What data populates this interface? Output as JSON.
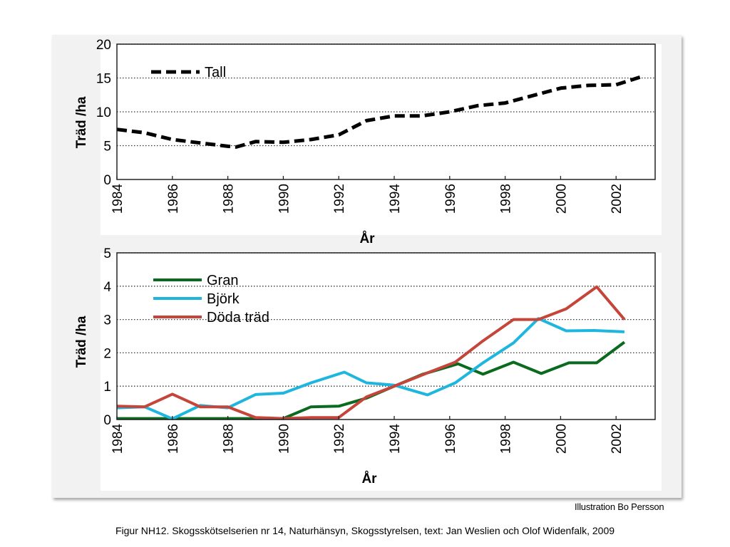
{
  "chart_data": [
    {
      "type": "line",
      "ylabel": "Träd /ha",
      "xlabel": "År",
      "ylim": [
        0,
        20
      ],
      "yticks": [
        0,
        5,
        10,
        15,
        20
      ],
      "xlim": [
        1984,
        2003
      ],
      "xticks": [
        "1984",
        "1986",
        "1988",
        "1990",
        "1992",
        "1994",
        "1996",
        "1998",
        "2000",
        "2002"
      ],
      "grid": "horizontal dotted",
      "legend_position": "top-left",
      "series": [
        {
          "name": "Tall",
          "color": "#000000",
          "dash": "dashed",
          "x": [
            1984,
            1985,
            1986,
            1987,
            1988,
            1988.3,
            1989,
            1990,
            1991,
            1992,
            1993,
            1994,
            1995,
            1996,
            1997,
            1998,
            1999,
            2000,
            2001,
            2002,
            2003
          ],
          "y": [
            7.4,
            6.9,
            5.9,
            5.4,
            4.9,
            4.8,
            5.6,
            5.5,
            5.9,
            6.6,
            8.7,
            9.4,
            9.4,
            10,
            10.9,
            11.3,
            12.4,
            13.5,
            13.9,
            14,
            15.3
          ]
        }
      ]
    },
    {
      "type": "line",
      "ylabel": "Träd /ha",
      "xlabel": "År",
      "ylim": [
        0,
        5
      ],
      "yticks": [
        0,
        1,
        2,
        3,
        4,
        5
      ],
      "xlim": [
        1984,
        2003
      ],
      "xticks": [
        "1984",
        "1986",
        "1988",
        "1990",
        "1992",
        "1994",
        "1996",
        "1998",
        "2000",
        "2002"
      ],
      "grid": "horizontal dotted",
      "legend_position": "top-left",
      "series": [
        {
          "name": "Gran",
          "color": "#0a6a1e",
          "x": [
            1984,
            1985,
            1986,
            1987,
            1988,
            1989,
            1990,
            1991,
            1992,
            1993,
            1994,
            1995,
            1996.3,
            1997.2,
            1998.3,
            1999.3,
            2000.3,
            2001.3,
            2002.3
          ],
          "y": [
            0.03,
            0.03,
            0.03,
            0.03,
            0.03,
            0.03,
            0.03,
            0.38,
            0.4,
            0.64,
            1,
            1.35,
            1.67,
            1.36,
            1.72,
            1.38,
            1.7,
            1.7,
            2.32
          ]
        },
        {
          "name": "Björk",
          "color": "#1fb6de",
          "x": [
            1984,
            1985,
            1986,
            1987,
            1988,
            1989,
            1990,
            1991,
            1992.2,
            1993,
            1994,
            1995.2,
            1996.2,
            1997.2,
            1998.3,
            1999.2,
            2000.2,
            2001.2,
            2002.3
          ],
          "y": [
            0.35,
            0.38,
            0.02,
            0.42,
            0.35,
            0.75,
            0.79,
            1.1,
            1.42,
            1.1,
            1.03,
            0.74,
            1.1,
            1.7,
            2.3,
            3.03,
            2.66,
            2.67,
            2.63
          ]
        },
        {
          "name": "Döda träd",
          "color": "#c5453a",
          "x": [
            1984,
            1985,
            1986,
            1987,
            1988,
            1989,
            1990,
            1991,
            1992,
            1993,
            1994,
            1995.2,
            1996.2,
            1997.2,
            1998.3,
            1999.2,
            2000.2,
            2001.3,
            2002.3
          ],
          "y": [
            0.4,
            0.38,
            0.76,
            0.38,
            0.38,
            0.06,
            0.03,
            0.06,
            0.06,
            0.68,
            1,
            1.4,
            1.72,
            2.36,
            3,
            3,
            3.32,
            3.98,
            3
          ]
        }
      ]
    }
  ],
  "credit": "Illustration Bo Persson",
  "caption": "Figur  NH12. Skogsskötselserien nr 14, Naturhänsyn, Skogsstyrelsen, text: Jan Weslien och Olof Widenfalk, 2009"
}
